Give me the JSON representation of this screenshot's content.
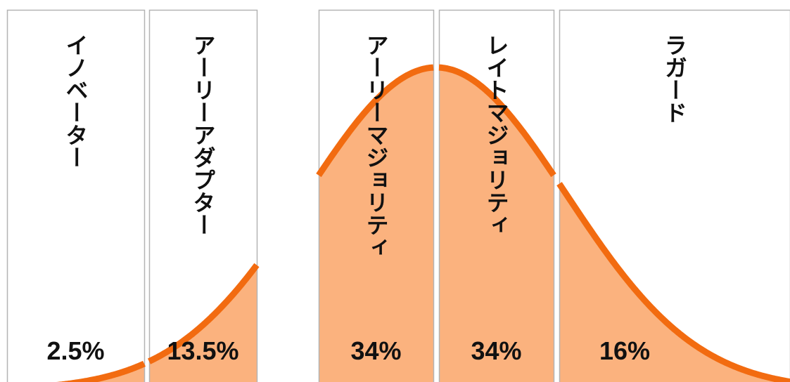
{
  "chart_data": {
    "type": "area",
    "title": "",
    "xlabel": "",
    "ylabel": "",
    "grid": false,
    "legend": "none",
    "curve_color": "#f26b10",
    "fill_color": "#fbb27e",
    "segments": [
      {
        "label": "イノベーター",
        "value": 2.5,
        "percent_text": "2.5%"
      },
      {
        "label": "アーリーアダプター",
        "value": 13.5,
        "percent_text": "13.5%"
      },
      {
        "label": "アーリーマジョリティ",
        "value": 34,
        "percent_text": "34%"
      },
      {
        "label": "レイトマジョリティ",
        "value": 34,
        "percent_text": "34%"
      },
      {
        "label": "ラガード",
        "value": 16,
        "percent_text": "16%"
      }
    ]
  }
}
